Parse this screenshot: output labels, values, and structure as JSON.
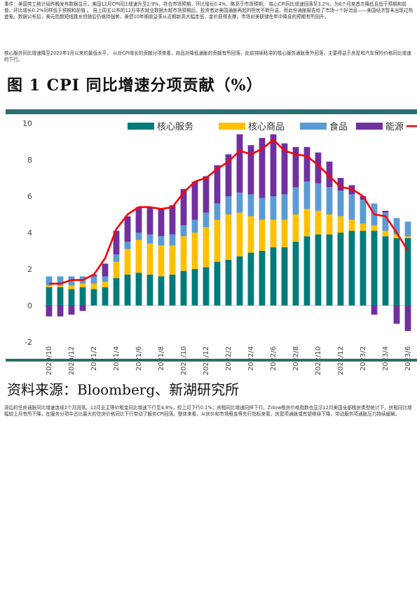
{
  "text": {
    "para1": "事件：美国劳工统计局昨晚发布数据显示，美国12月CPI同比增速升至2.9%，符合市场预期，环比增长0.4%，略高于市场预期； 核心CPI同比增速回落至3.2%，为6个月来首次降低且低于预期和前值，环比增长0.2%同样低于预期和前值 。 自上周五公布的12月非农就业数据大超市场预期后，投资者对美国通胀再起的担忧不断升温，而此份通胀报告给了市场一个好消息——美国经济暂未出现过热迹象。数据公布后，美元指数短线跳水但随后仍维持强势，美债10年期收益率从近期新高大幅走低，金价获得支撑，市场对美联储在年中降息的预期有所回升。",
    "para2": "核心服务同比增速降至2023年3月以来的最低水平， 从对CPI增长的贡献分项来看，商品对降低通胀的贡献有所回落，此前持续粘滞的核心服务通胀意外回落，主要得益于房屋和汽车保险价格同比增速的下行。",
    "figure_title": "图  1   CPI 同比增速分项贡献（%）",
    "source": "资料来源：Bloomberg、新湖研究所",
    "para3": "滞后的住房通胀同比增速连续2个月回落。12月业主等价租金同比增速下行至4.8%，较上月下行0.1%；房租同比增速同样下行。Zillow租房价格指数也显示12月美国全部租房类型统计下，房租同比增幅较上月有所下降。在服务分项中占比最大的住房价格同比下行带动了服务CPI回落。整体来看，从房价和市场租金等先行指标来看，房屋项通胀或有望继续下降，带动服务项通胀压力持续缓解。"
  },
  "chart_data": {
    "type": "bar",
    "stacked": true,
    "legend": [
      "核心服务",
      "核心商品",
      "食品",
      "能源",
      ""
    ],
    "legend_position": "top",
    "colors": {
      "core_services": "#007b7b",
      "core_goods": "#ffc000",
      "food": "#5b9bd5",
      "energy": "#7030a0",
      "total": "#ff0000"
    },
    "ylim": [
      -2,
      10
    ],
    "yticks": [
      "-2",
      "0",
      "2",
      "4",
      "6",
      "8",
      "10"
    ],
    "xtick_labels": [
      "2020/10",
      "2020/12",
      "2021/2",
      "2021/4",
      "2021/6",
      "2021/8",
      "2021/10",
      "2021/12",
      "2022/2",
      "2022/4",
      "2022/6",
      "2022/8",
      "2022/10",
      "2022/12",
      "2023/2",
      "2023/4",
      "2023/6"
    ],
    "months": [
      "2020/10",
      "2020/11",
      "2020/12",
      "2021/1",
      "2021/2",
      "2021/3",
      "2021/4",
      "2021/5",
      "2021/6",
      "2021/7",
      "2021/8",
      "2021/9",
      "2021/10",
      "2021/11",
      "2021/12",
      "2022/1",
      "2022/2",
      "2022/3",
      "2022/4",
      "2022/5",
      "2022/6",
      "2022/7",
      "2022/8",
      "2022/9",
      "2022/10",
      "2022/11",
      "2022/12",
      "2023/1",
      "2023/2",
      "2023/3",
      "2023/4",
      "2023/5",
      "2023/6"
    ],
    "series": [
      {
        "name": "核心服务",
        "values": [
          1.0,
          1.0,
          0.9,
          1.0,
          0.9,
          1.0,
          1.5,
          1.7,
          1.8,
          1.7,
          1.6,
          1.7,
          1.9,
          2.0,
          2.1,
          2.4,
          2.5,
          2.7,
          2.9,
          3.0,
          3.2,
          3.2,
          3.5,
          3.8,
          3.9,
          3.9,
          4.0,
          4.1,
          4.1,
          4.1,
          3.8,
          3.7,
          3.7
        ]
      },
      {
        "name": "核心商品",
        "values": [
          0.1,
          0.1,
          0.2,
          0.2,
          0.3,
          0.3,
          0.9,
          1.4,
          1.8,
          1.7,
          1.7,
          1.6,
          1.9,
          2.0,
          2.2,
          2.3,
          2.5,
          2.4,
          2.0,
          1.7,
          1.5,
          1.5,
          1.5,
          1.5,
          1.3,
          1.1,
          0.9,
          0.6,
          0.4,
          0.3,
          0.3,
          0.2,
          0.1
        ]
      },
      {
        "name": "食品",
        "values": [
          0.5,
          0.5,
          0.5,
          0.4,
          0.4,
          0.3,
          0.4,
          0.4,
          0.4,
          0.5,
          0.5,
          0.6,
          0.6,
          0.7,
          0.8,
          0.9,
          1.0,
          1.1,
          1.2,
          1.2,
          1.3,
          1.4,
          1.5,
          1.5,
          1.5,
          1.5,
          1.4,
          1.4,
          1.3,
          1.2,
          1.0,
          0.9,
          0.8
        ]
      },
      {
        "name": "能源",
        "values": [
          -0.6,
          -0.6,
          -0.5,
          -0.3,
          0.1,
          0.7,
          1.3,
          1.4,
          1.4,
          1.5,
          1.5,
          1.6,
          2.0,
          2.1,
          2.0,
          2.1,
          2.3,
          3.2,
          2.7,
          3.3,
          3.4,
          2.8,
          2.2,
          1.9,
          1.7,
          1.4,
          0.7,
          0.5,
          0.2,
          -0.5,
          0.1,
          -1.0,
          -1.4
        ]
      }
    ],
    "total_line": [
      1.2,
      1.2,
      1.4,
      1.4,
      1.7,
      2.6,
      4.2,
      5.0,
      5.4,
      5.4,
      5.3,
      5.4,
      6.2,
      6.8,
      7.0,
      7.5,
      7.9,
      8.5,
      8.3,
      8.6,
      9.1,
      8.5,
      8.3,
      8.2,
      7.7,
      7.1,
      6.5,
      6.4,
      6.0,
      5.0,
      4.9,
      4.0,
      3.0
    ]
  }
}
